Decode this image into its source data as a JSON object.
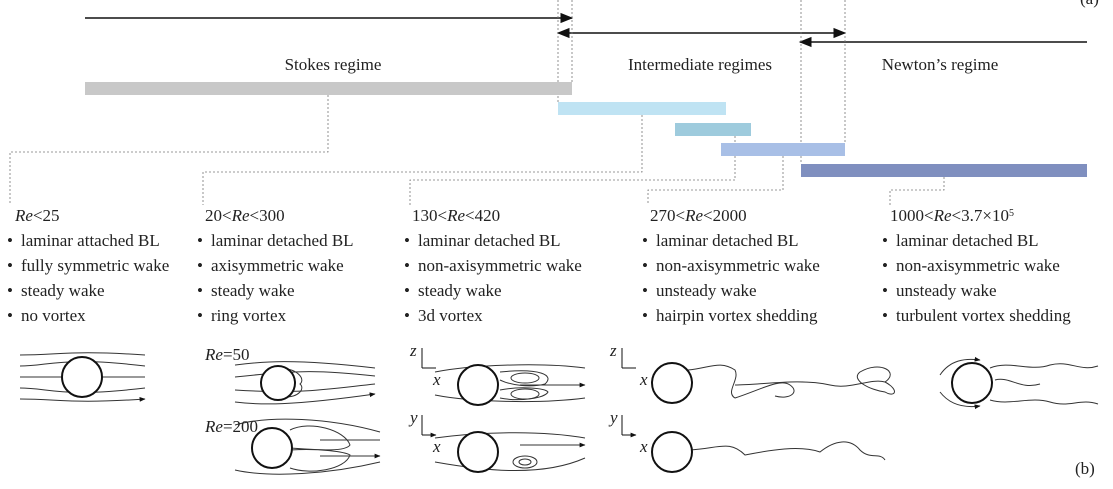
{
  "panel_a_label": "(a)",
  "panel_b_label": "(b)",
  "regimes": [
    "Stokes regime",
    "Intermediate regimes",
    "Newton’s regime"
  ],
  "columns": [
    {
      "header": [
        {
          "text": "Re",
          "style": "italic"
        },
        {
          "text": "<25"
        }
      ],
      "bullets": [
        "laminar attached BL",
        "fully symmetric wake",
        "steady wake",
        "no vortex"
      ]
    },
    {
      "header": [
        {
          "text": "20<"
        },
        {
          "text": "Re",
          "style": "italic"
        },
        {
          "text": "<300"
        }
      ],
      "bullets": [
        "laminar detached BL",
        "axisymmetric wake",
        "steady wake",
        "ring vortex"
      ]
    },
    {
      "header": [
        {
          "text": "130<"
        },
        {
          "text": "Re",
          "style": "italic"
        },
        {
          "text": "<420"
        }
      ],
      "bullets": [
        "laminar detached BL",
        "non-axisymmetric wake",
        "steady wake",
        "3d vortex"
      ]
    },
    {
      "header": [
        {
          "text": "270<"
        },
        {
          "text": "Re",
          "style": "italic"
        },
        {
          "text": "<2000"
        }
      ],
      "bullets": [
        "laminar detached BL",
        "non-axisymmetric wake",
        "unsteady wake",
        "hairpin vortex shedding"
      ]
    },
    {
      "header": [
        {
          "text": "1000<"
        },
        {
          "text": "Re",
          "style": "italic"
        },
        {
          "text": "<3.7×10"
        },
        {
          "text": "5",
          "style": "sup"
        }
      ],
      "bullets": [
        "laminar detached BL",
        "non-axisymmetric wake",
        "unsteady wake",
        "turbulent vortex shedding"
      ]
    }
  ],
  "sketch_labels": {
    "re50": [
      {
        "text": "Re",
        "style": "italic"
      },
      {
        "text": "=50"
      }
    ],
    "re200": [
      {
        "text": "Re",
        "style": "italic"
      },
      {
        "text": "=200"
      }
    ],
    "axes": [
      "z",
      "x",
      "y",
      "x",
      "z",
      "x",
      "y",
      "x"
    ]
  }
}
